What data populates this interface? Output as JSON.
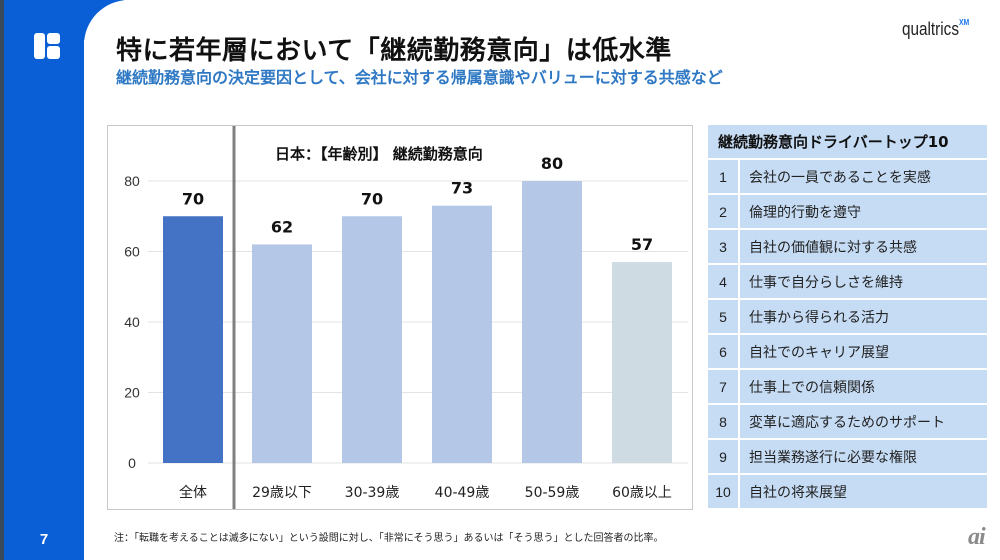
{
  "slide": {
    "page_number": "7",
    "title": "特に若年層において「継続勤務意向」は低水準",
    "subtitle": "継続勤務意向の決定要因として、会社に対する帰属意識やバリューに対する共感など",
    "brand": "qualtrics",
    "brand_suffix": "XM",
    "note": "注：「転職を考えることは滅多にない」という設問に対し、「非常にそう思う」あるいは「そう思う」とした回答者の比率。",
    "watermark": "ai",
    "colors": {
      "sidebar": "#0b5fd6",
      "subtitle": "#2f78c4",
      "table_bg": "#c6dcf5"
    }
  },
  "chart_data": {
    "type": "bar",
    "title": "日本：【年齢別】 継続勤務意向",
    "categories": [
      "全体",
      "29歳以下",
      "30-39歳",
      "40-49歳",
      "50-59歳",
      "60歳以上"
    ],
    "values": [
      70,
      62,
      70,
      73,
      80,
      57
    ],
    "data_labels": [
      "70",
      "62",
      "70",
      "73",
      "80",
      "57"
    ],
    "bar_colors": [
      "#4472c4",
      "#b4c7e7",
      "#b4c7e7",
      "#b4c7e7",
      "#b4c7e7",
      "#cfdbe3"
    ],
    "ylim": [
      0,
      80
    ],
    "yticks": [
      0,
      20,
      40,
      60,
      80
    ],
    "ytick_labels": [
      "0",
      "20",
      "40",
      "60",
      "80"
    ],
    "xlabel": "",
    "ylabel": "",
    "grid": true,
    "legend": "none"
  },
  "drivers": {
    "header": "継続勤務意向ドライバートップ10",
    "items": [
      {
        "rank": "1",
        "label": "会社の一員であることを実感"
      },
      {
        "rank": "2",
        "label": "倫理的行動を遵守"
      },
      {
        "rank": "3",
        "label": "自社の価値観に対する共感"
      },
      {
        "rank": "4",
        "label": "仕事で自分らしさを維持"
      },
      {
        "rank": "5",
        "label": "仕事から得られる活力"
      },
      {
        "rank": "6",
        "label": "自社でのキャリア展望"
      },
      {
        "rank": "7",
        "label": "仕事上での信頼関係"
      },
      {
        "rank": "8",
        "label": "変革に適応するためのサポート"
      },
      {
        "rank": "9",
        "label": "担当業務遂行に必要な権限"
      },
      {
        "rank": "10",
        "label": "自社の将来展望"
      }
    ]
  }
}
